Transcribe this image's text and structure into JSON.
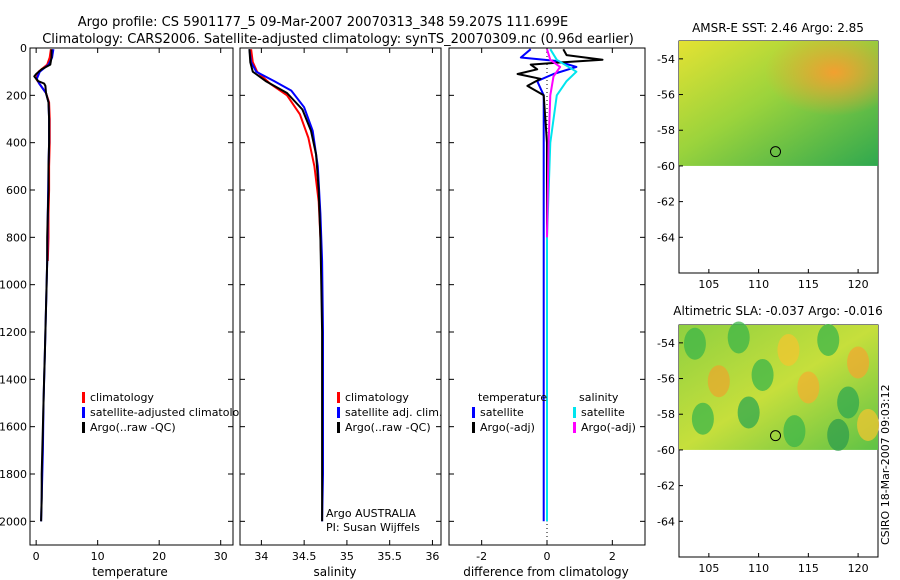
{
  "figure": {
    "title_line1": "Argo profile: CS 5901177_5 09-Mar-2007 20070313_348 59.207S 111.699E",
    "title_line2": "Climatology: CARS2006. Satellite-adjusted climatology: synTS_20070309.nc (0.96d earlier)",
    "side_label": "CSIRO 18-Mar-2007 09:03:12",
    "annotation_line1": "Argo AUSTRALIA",
    "annotation_line2": "PI: Susan Wijffels"
  },
  "chart_data": [
    {
      "id": "temperature",
      "type": "line",
      "xlabel": "temperature",
      "xlim": [
        -1,
        32
      ],
      "ylim": [
        2100,
        0
      ],
      "xticks": [
        0,
        10,
        20,
        30
      ],
      "yticks": [
        0,
        200,
        400,
        600,
        800,
        1000,
        1200,
        1400,
        1600,
        1800,
        2000
      ],
      "legend": [
        {
          "label": "climatology",
          "color": "#ff0000"
        },
        {
          "label": "satellite-adjusted climatology",
          "color": "#0000ff"
        },
        {
          "label": "Argo(..raw -QC)",
          "color": "#000000"
        }
      ],
      "series": [
        {
          "name": "climatology",
          "color": "#ff0000",
          "points": [
            [
              2.4,
              5
            ],
            [
              2.2,
              40
            ],
            [
              1.8,
              70
            ],
            [
              0.4,
              100
            ],
            [
              0.0,
              130
            ],
            [
              0.5,
              150
            ],
            [
              1.6,
              190
            ],
            [
              2.1,
              230
            ],
            [
              2.2,
              300
            ],
            [
              2.2,
              400
            ],
            [
              2.1,
              500
            ],
            [
              2.1,
              600
            ],
            [
              2.0,
              700
            ],
            [
              2.0,
              800
            ],
            [
              1.9,
              900
            ]
          ]
        },
        {
          "name": "satellite-adjusted climatology",
          "color": "#0000ff",
          "points": [
            [
              2.8,
              5
            ],
            [
              2.6,
              40
            ],
            [
              2.0,
              70
            ],
            [
              0.6,
              100
            ],
            [
              0.1,
              130
            ],
            [
              0.5,
              150
            ],
            [
              1.6,
              190
            ],
            [
              2.0,
              230
            ],
            [
              2.1,
              300
            ],
            [
              2.1,
              400
            ],
            [
              2.0,
              500
            ],
            [
              1.9,
              700
            ],
            [
              1.8,
              900
            ],
            [
              1.6,
              1100
            ],
            [
              1.4,
              1300
            ],
            [
              1.2,
              1500
            ],
            [
              1.1,
              1700
            ],
            [
              0.9,
              1900
            ],
            [
              0.8,
              2000
            ]
          ]
        },
        {
          "name": "Argo(..raw -QC)",
          "color": "#000000",
          "points": [
            [
              2.5,
              5
            ],
            [
              2.5,
              40
            ],
            [
              2.3,
              70
            ],
            [
              0.9,
              90
            ],
            [
              0.0,
              110
            ],
            [
              -0.3,
              120
            ],
            [
              0.3,
              140
            ],
            [
              1.3,
              150
            ],
            [
              1.5,
              160
            ],
            [
              1.6,
              190
            ],
            [
              2.0,
              230
            ],
            [
              2.1,
              300
            ],
            [
              2.1,
              400
            ],
            [
              2.0,
              500
            ],
            [
              2.0,
              600
            ],
            [
              1.9,
              700
            ],
            [
              1.8,
              800
            ],
            [
              1.8,
              900
            ],
            [
              1.7,
              1000
            ],
            [
              1.6,
              1100
            ],
            [
              1.5,
              1200
            ],
            [
              1.4,
              1300
            ],
            [
              1.3,
              1400
            ],
            [
              1.2,
              1500
            ],
            [
              1.1,
              1600
            ],
            [
              1.0,
              1700
            ],
            [
              0.9,
              1800
            ],
            [
              0.9,
              1900
            ],
            [
              0.8,
              2000
            ]
          ]
        }
      ]
    },
    {
      "id": "salinity",
      "type": "line",
      "xlabel": "salinity",
      "xlim": [
        33.75,
        36.1
      ],
      "ylim": [
        2100,
        0
      ],
      "xticks": [
        34,
        34.5,
        35,
        35.5,
        36
      ],
      "yticks": [
        0,
        200,
        400,
        600,
        800,
        1000,
        1200,
        1400,
        1600,
        1800,
        2000
      ],
      "legend": [
        {
          "label": "climatology",
          "color": "#ff0000"
        },
        {
          "label": "satellite adj. clim.",
          "color": "#0000ff"
        },
        {
          "label": "Argo(..raw -QC)",
          "color": "#000000"
        }
      ],
      "series": [
        {
          "name": "climatology",
          "color": "#ff0000",
          "points": [
            [
              33.88,
              5
            ],
            [
              33.9,
              60
            ],
            [
              33.95,
              100
            ],
            [
              34.1,
              150
            ],
            [
              34.3,
              200
            ],
            [
              34.45,
              280
            ],
            [
              34.55,
              380
            ],
            [
              34.62,
              500
            ],
            [
              34.67,
              650
            ],
            [
              34.69,
              800
            ],
            [
              34.7,
              900
            ]
          ]
        },
        {
          "name": "satellite adj. clim.",
          "color": "#0000ff",
          "points": [
            [
              33.86,
              5
            ],
            [
              33.88,
              60
            ],
            [
              33.94,
              100
            ],
            [
              34.15,
              140
            ],
            [
              34.35,
              180
            ],
            [
              34.5,
              250
            ],
            [
              34.6,
              350
            ],
            [
              34.66,
              500
            ],
            [
              34.69,
              700
            ],
            [
              34.71,
              900
            ],
            [
              34.72,
              1200
            ],
            [
              34.72,
              1500
            ],
            [
              34.72,
              1800
            ],
            [
              34.71,
              2000
            ]
          ]
        },
        {
          "name": "Argo(..raw -QC)",
          "color": "#000000",
          "points": [
            [
              33.86,
              5
            ],
            [
              33.87,
              60
            ],
            [
              33.9,
              100
            ],
            [
              34.05,
              140
            ],
            [
              34.3,
              190
            ],
            [
              34.48,
              260
            ],
            [
              34.58,
              350
            ],
            [
              34.64,
              450
            ],
            [
              34.67,
              600
            ],
            [
              34.69,
              800
            ],
            [
              34.7,
              1000
            ],
            [
              34.71,
              1200
            ],
            [
              34.71,
              1500
            ],
            [
              34.71,
              1800
            ],
            [
              34.71,
              2000
            ]
          ]
        }
      ]
    },
    {
      "id": "difference",
      "type": "line",
      "xlabel": "difference from climatology",
      "xlim": [
        -3,
        3
      ],
      "ylim": [
        2100,
        0
      ],
      "xticks": [
        -2,
        0,
        2
      ],
      "yticks": [
        0,
        200,
        400,
        600,
        800,
        1000,
        1200,
        1400,
        1600,
        1800,
        2000
      ],
      "legend_left": [
        {
          "label": "temperature",
          "color": null
        },
        {
          "label": "satellite",
          "color": "#0000ff"
        },
        {
          "label": "Argo(-adj)",
          "color": "#000000"
        }
      ],
      "legend_right": [
        {
          "label": "salinity",
          "color": null
        },
        {
          "label": "satellite",
          "color": "#00e5ee"
        },
        {
          "label": "Argo(-adj)",
          "color": "#ff00ff"
        }
      ],
      "series": [
        {
          "name": "temperature satellite",
          "color": "#0000ff",
          "points": [
            [
              -0.5,
              5
            ],
            [
              -0.8,
              40
            ],
            [
              0.3,
              55
            ],
            [
              0.9,
              80
            ],
            [
              0.2,
              110
            ],
            [
              -0.3,
              140
            ],
            [
              -0.1,
              200
            ],
            [
              -0.1,
              400
            ],
            [
              -0.1,
              800
            ],
            [
              -0.1,
              1200
            ],
            [
              -0.1,
              1600
            ],
            [
              -0.1,
              2000
            ]
          ]
        },
        {
          "name": "temperature Argo(-adj)",
          "color": "#000000",
          "points": [
            [
              0.5,
              5
            ],
            [
              0.6,
              30
            ],
            [
              1.7,
              50
            ],
            [
              0.5,
              60
            ],
            [
              -0.5,
              70
            ],
            [
              -0.3,
              90
            ],
            [
              -0.9,
              110
            ],
            [
              -0.2,
              130
            ],
            [
              -0.6,
              160
            ],
            [
              -0.1,
              200
            ],
            [
              0.0,
              400
            ],
            [
              0.0,
              800
            ],
            [
              0.0,
              1200
            ],
            [
              0.0,
              1600
            ],
            [
              0.0,
              2000
            ]
          ]
        },
        {
          "name": "salinity satellite",
          "color": "#00e5ee",
          "points": [
            [
              0.1,
              5
            ],
            [
              0.3,
              50
            ],
            [
              0.9,
              100
            ],
            [
              0.6,
              140
            ],
            [
              0.3,
              200
            ],
            [
              0.1,
              400
            ],
            [
              0.0,
              800
            ],
            [
              0.0,
              1200
            ],
            [
              0.0,
              1600
            ],
            [
              0.0,
              2000
            ]
          ]
        },
        {
          "name": "salinity Argo(-adj)",
          "color": "#ff00ff",
          "points": [
            [
              0.0,
              5
            ],
            [
              0.1,
              50
            ],
            [
              0.4,
              80
            ],
            [
              0.2,
              120
            ],
            [
              0.1,
              200
            ],
            [
              0.05,
              400
            ],
            [
              0.0,
              800
            ]
          ]
        }
      ]
    },
    {
      "id": "sst_map",
      "type": "heatmap",
      "title": "AMSR-E SST: 2.46 Argo: 2.85",
      "xlim": [
        102,
        122
      ],
      "ylim": [
        -66,
        -53
      ],
      "xticks": [
        105,
        110,
        115,
        120
      ],
      "yticks": [
        -54,
        -56,
        -58,
        -60,
        -62,
        -64
      ],
      "data_extent_lat": [
        -60,
        -53
      ],
      "marker": {
        "lon": 111.7,
        "lat": -59.2
      }
    },
    {
      "id": "sla_map",
      "type": "heatmap",
      "title": "Altimetric SLA: -0.037 Argo: -0.016",
      "xlim": [
        102,
        122
      ],
      "ylim": [
        -66,
        -53
      ],
      "xticks": [
        105,
        110,
        115,
        120
      ],
      "yticks": [
        -54,
        -56,
        -58,
        -60,
        -62,
        -64
      ],
      "data_extent_lat": [
        -60,
        -53
      ],
      "marker": {
        "lon": 111.7,
        "lat": -59.2
      }
    }
  ]
}
